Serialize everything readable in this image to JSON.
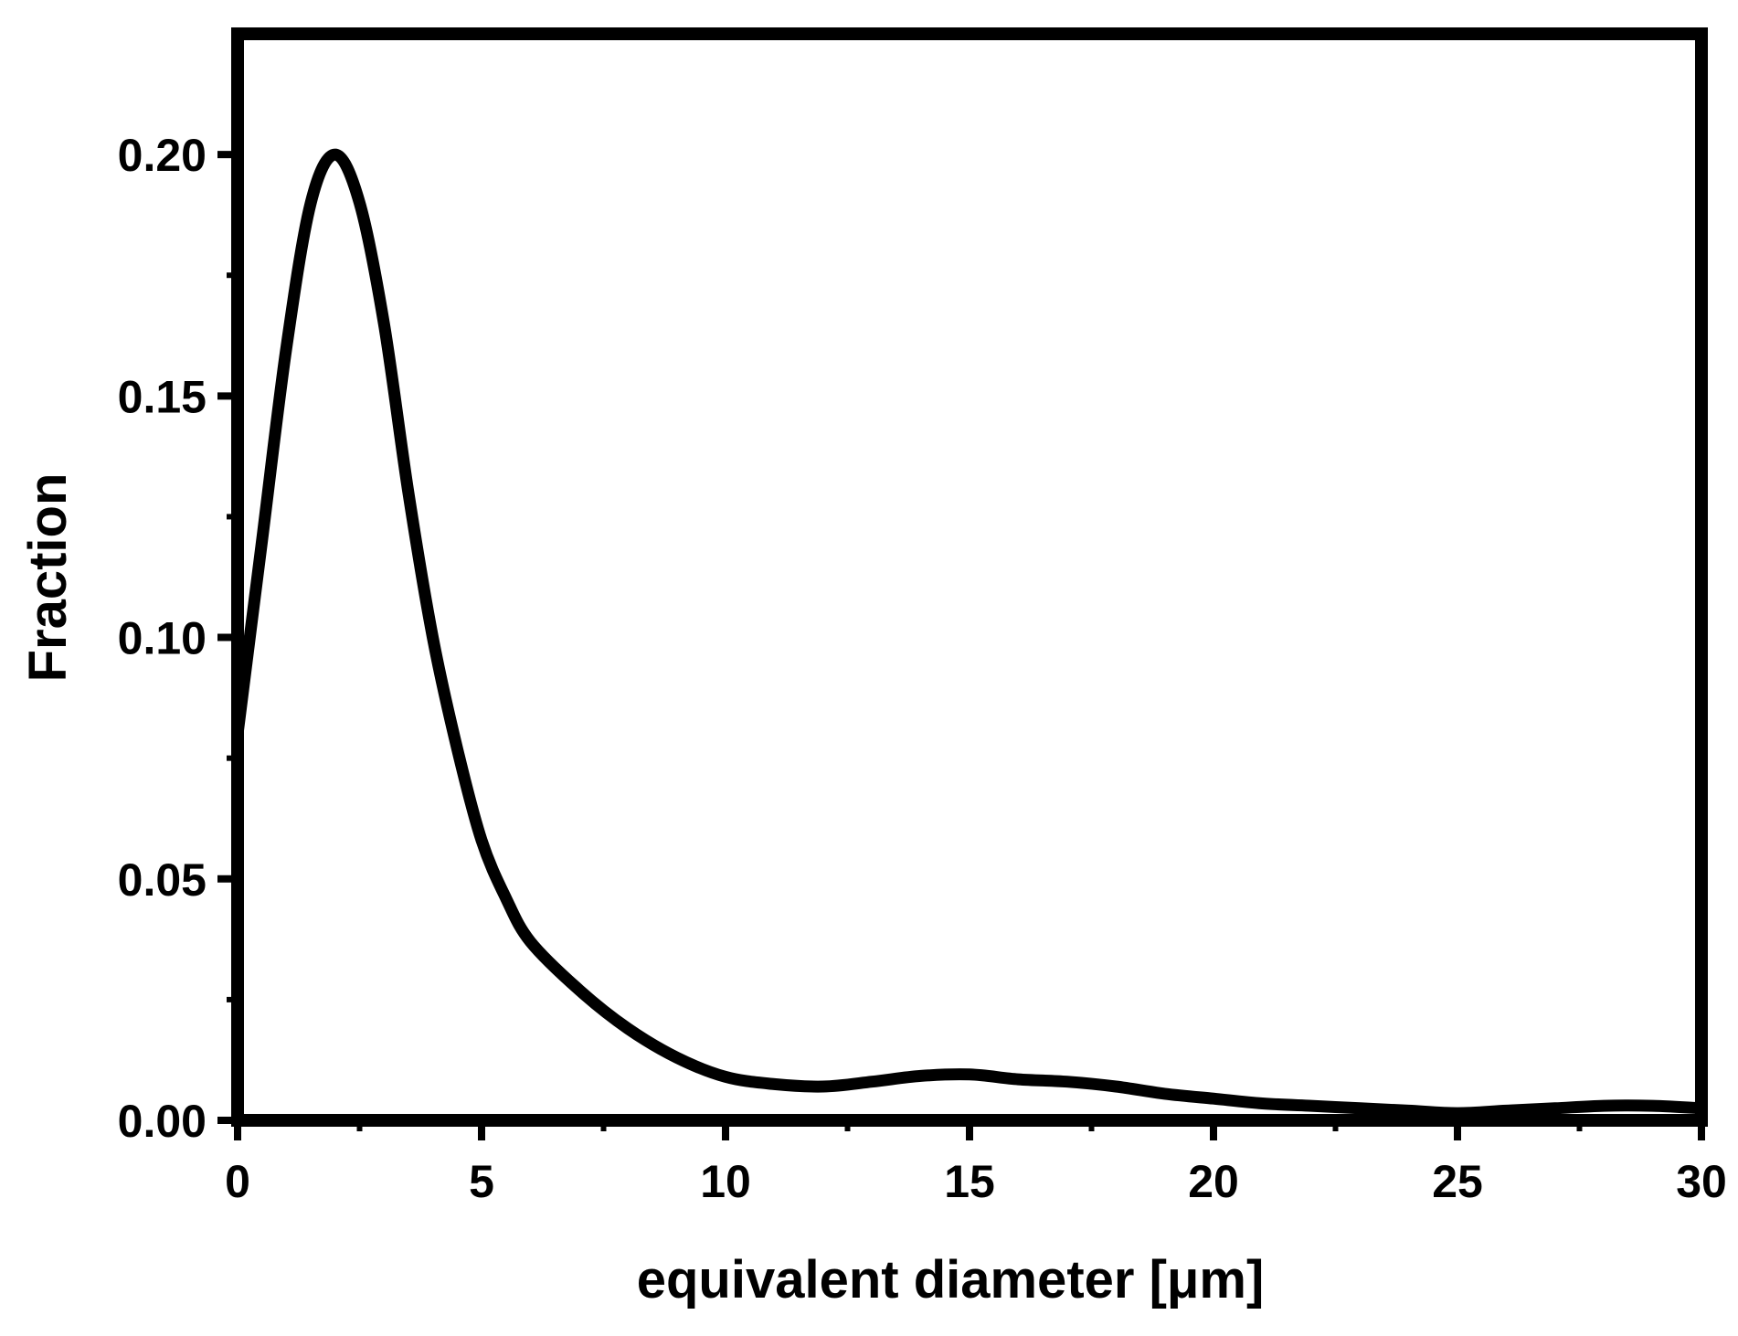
{
  "chart_data": {
    "type": "line",
    "xlabel": "equivalent diameter [μm]",
    "ylabel": "Fraction",
    "xlim": [
      0,
      30
    ],
    "ylim": [
      0,
      0.225
    ],
    "x_ticks": [
      0,
      5,
      10,
      15,
      20,
      25,
      30
    ],
    "x_tick_labels": [
      "0",
      "5",
      "10",
      "15",
      "20",
      "25",
      "30"
    ],
    "x_minor_ticks": [
      2.5,
      7.5,
      12.5,
      17.5,
      22.5,
      27.5
    ],
    "y_ticks": [
      0.0,
      0.05,
      0.1,
      0.15,
      0.2
    ],
    "y_tick_labels": [
      "0.00",
      "0.05",
      "0.10",
      "0.15",
      "0.20"
    ],
    "y_minor_ticks": [
      0.025,
      0.075,
      0.125,
      0.175
    ],
    "grid": false,
    "line_color": "#000000",
    "series": [
      {
        "x": [
          0,
          0.5,
          1,
          1.5,
          2,
          2.5,
          3,
          3.5,
          4,
          4.5,
          5,
          5.5,
          6,
          7,
          8,
          9,
          10,
          11,
          12,
          13,
          14,
          15,
          16,
          17,
          18,
          19,
          20,
          21,
          22,
          23,
          24,
          25,
          26,
          27,
          28,
          29,
          30
        ],
        "y": [
          0.08,
          0.12,
          0.16,
          0.19,
          0.2,
          0.19,
          0.165,
          0.13,
          0.1,
          0.077,
          0.058,
          0.046,
          0.037,
          0.027,
          0.019,
          0.013,
          0.009,
          0.0075,
          0.007,
          0.008,
          0.0092,
          0.0095,
          0.0085,
          0.008,
          0.007,
          0.0055,
          0.0045,
          0.0035,
          0.003,
          0.0025,
          0.002,
          0.0015,
          0.002,
          0.0025,
          0.003,
          0.003,
          0.0025
        ]
      }
    ]
  }
}
